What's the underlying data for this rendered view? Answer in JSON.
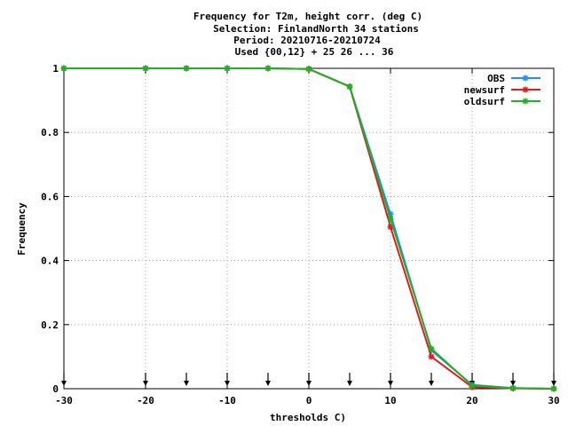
{
  "chart_data": {
    "type": "line",
    "title_lines": [
      "Frequency  for T2m, height corr. (deg C)",
      "Selection: FinlandNorth     34 stations",
      "Period: 20210716-20210724",
      "Used {00,12} + 25 26 ... 36"
    ],
    "xlabel": "thresholds C)",
    "ylabel": "Frequency",
    "xlim": [
      -30,
      30
    ],
    "ylim": [
      0,
      1
    ],
    "xticks": [
      -30,
      -20,
      -10,
      0,
      10,
      20,
      30
    ],
    "xtick_labels": [
      "-30",
      "-20",
      "-10",
      "0",
      "10",
      "20",
      "30"
    ],
    "yticks": [
      0,
      0.2,
      0.4,
      0.6,
      0.8,
      1
    ],
    "ytick_labels": [
      "0",
      "0.2",
      "0.4",
      "0.6",
      "0.8",
      "1"
    ],
    "grid": true,
    "legend_position": "top-right",
    "threshold_markers": [
      -30,
      -20,
      -15,
      -10,
      -5,
      0,
      5,
      10,
      15,
      20,
      25,
      30
    ],
    "x": [
      -30,
      -20,
      -15,
      -10,
      -5,
      0,
      5,
      10,
      15,
      20,
      25,
      30
    ],
    "series": [
      {
        "name": "OBS",
        "color": "#1e90ff",
        "values": [
          1.0,
          1.0,
          1.0,
          1.0,
          1.0,
          0.998,
          0.943,
          0.545,
          0.12,
          0.012,
          0.002,
          0.0
        ]
      },
      {
        "name": "newsurf",
        "color": "#e41a1c",
        "values": [
          1.0,
          1.0,
          1.0,
          1.0,
          1.0,
          0.998,
          0.943,
          0.505,
          0.1,
          0.005,
          0.001,
          0.0
        ]
      },
      {
        "name": "oldsurf",
        "color": "#22b022",
        "values": [
          1.0,
          1.0,
          1.0,
          1.0,
          1.0,
          0.998,
          0.943,
          0.53,
          0.125,
          0.01,
          0.002,
          0.0
        ]
      }
    ]
  }
}
